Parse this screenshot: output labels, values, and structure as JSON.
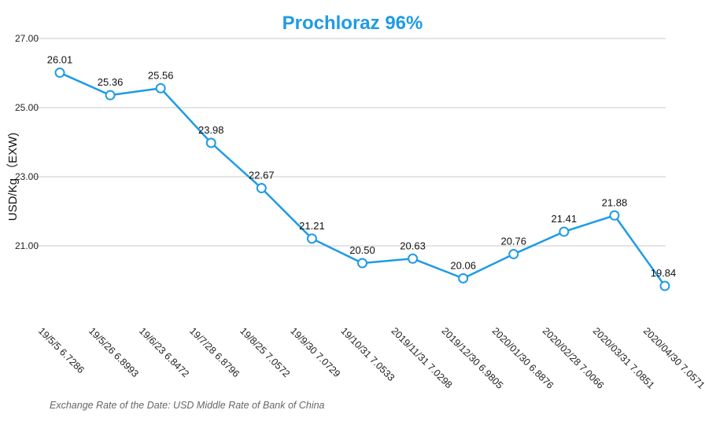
{
  "chart_data": {
    "type": "line",
    "title": "Prochloraz 96%",
    "ylabel": "USD/Kg （EXW)",
    "xlabel": "",
    "ylim": [
      19.0,
      27.0
    ],
    "yticks": [
      "27.00",
      "25.00",
      "23.00",
      "21.00"
    ],
    "ytick_values": [
      27,
      25,
      23,
      21
    ],
    "grid": true,
    "legend": "none",
    "categories": [
      "19/5/5 6.7286",
      "19/5/26 6.8993",
      "19/6/23 6.8472",
      "19/7/28 6.8796",
      "19/8/25 7.0572",
      "19/9/30 7.0729",
      "19/10/31 7.0533",
      "2019/11/31 7.0298",
      "2019/12/30 6.9805",
      "2020/01/30 6.8876",
      "2020/02/28 7.0066",
      "2020/03/31 7.0851",
      "2020/04/30 7.0571"
    ],
    "values": [
      26.01,
      25.36,
      25.56,
      23.98,
      22.67,
      21.21,
      20.5,
      20.63,
      20.06,
      20.76,
      21.41,
      21.88,
      19.84
    ],
    "value_labels": [
      "26.01",
      "25.36",
      "25.56",
      "23.98",
      "22.67",
      "21.21",
      "20.50",
      "20.63",
      "20.06",
      "20.76",
      "21.41",
      "21.88",
      "19.84"
    ],
    "color": "#1e9be6",
    "footnote": "Exchange Rate of the Date: USD Middle Rate of Bank of China"
  }
}
